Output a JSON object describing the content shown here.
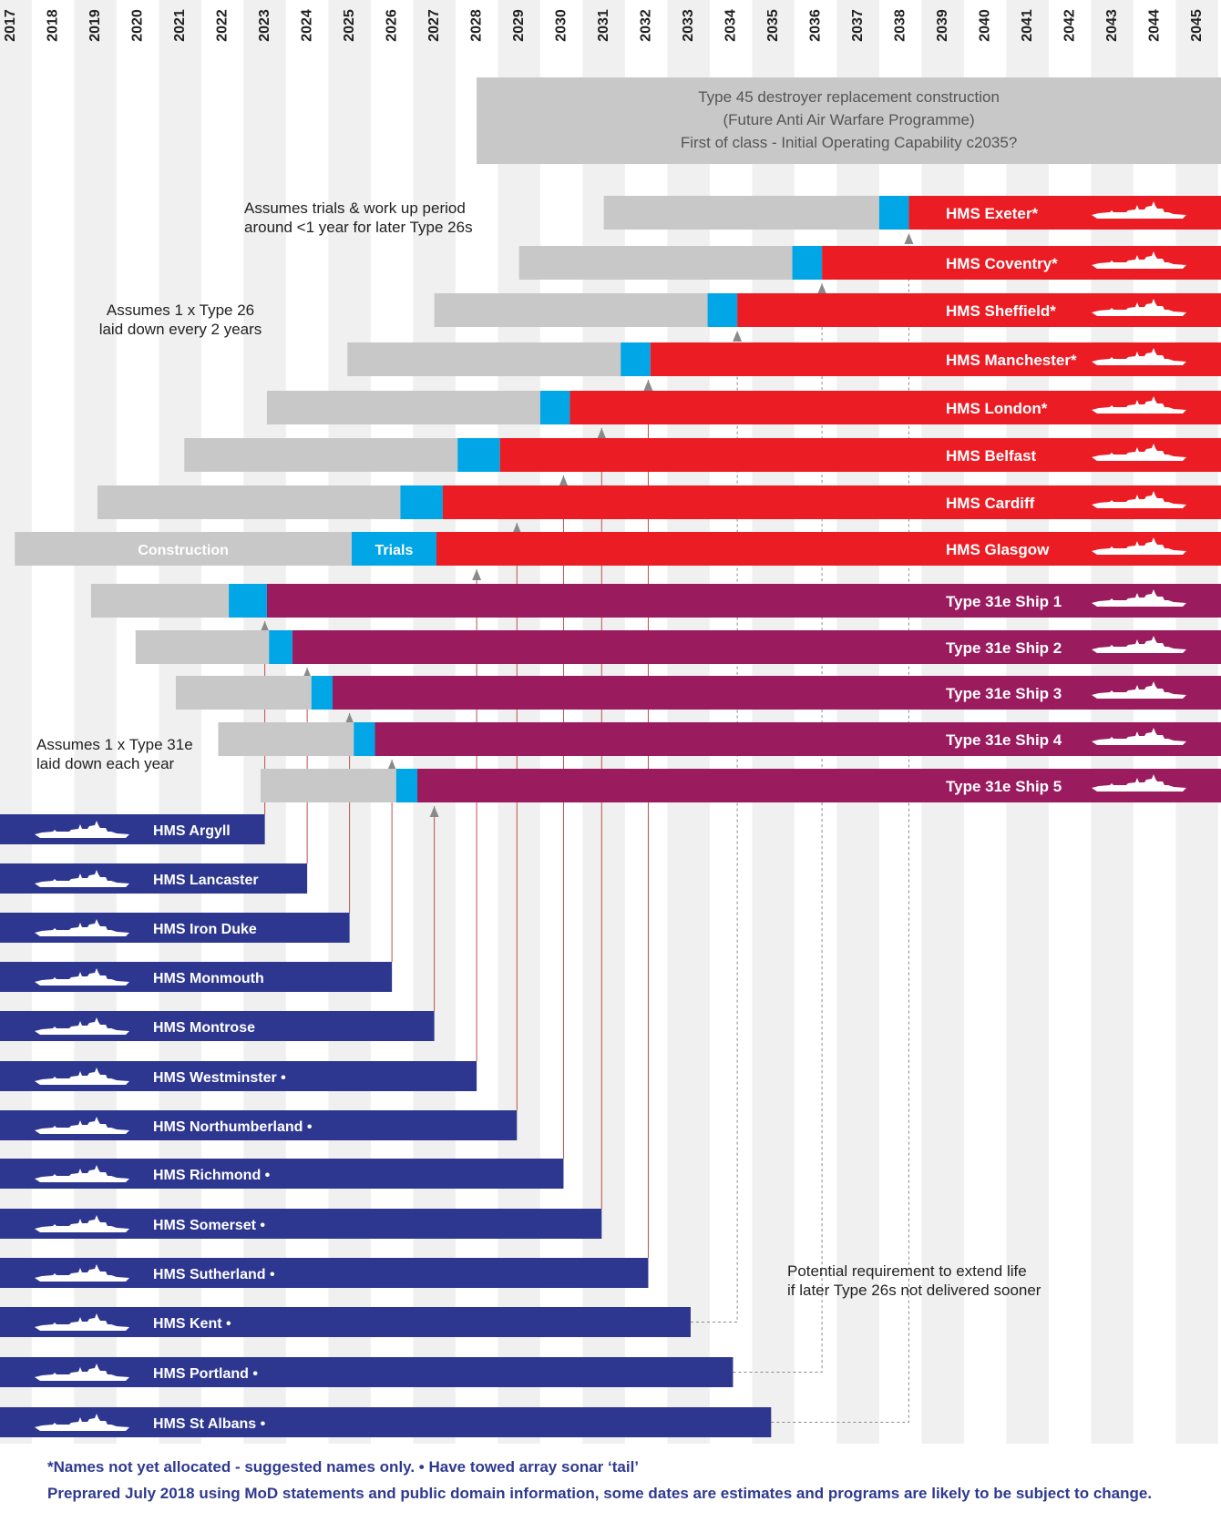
{
  "chart_data": {
    "type": "gantt",
    "years": [
      "2017",
      "2018",
      "2019",
      "2020",
      "2021",
      "2022",
      "2023",
      "2024",
      "2025",
      "2026",
      "2027",
      "2028",
      "2029",
      "2030",
      "2031",
      "2032",
      "2033",
      "2034",
      "2035",
      "2036",
      "2037",
      "2038",
      "2039",
      "2040",
      "2041",
      "2042",
      "2043",
      "2044",
      "2045"
    ],
    "colors": {
      "construction": "#c8c8c8",
      "trials": "#00a6e6",
      "type26": "#ec1c24",
      "type31e": "#9b1b5f",
      "type23": "#2e3790",
      "type45_box": "#c8c8c8",
      "arrow_link": "#c0504d"
    },
    "legend_labels": {
      "construction": "Construction",
      "trials": "Trials"
    },
    "type45_box": {
      "start": 2028.0,
      "end": 2046.0,
      "lines": [
        "Type 45 destroyer replacement construction",
        "(Future Anti Air Warfare Programme)",
        "First of class - Initial Operating Capability c2035?"
      ]
    },
    "type26": [
      {
        "name": "HMS Exeter*",
        "start": 2031.0,
        "trials": 2037.5,
        "service": 2038.2
      },
      {
        "name": "HMS Coventry*",
        "start": 2029.0,
        "trials": 2035.45,
        "service": 2036.15
      },
      {
        "name": "HMS Sheffield*",
        "start": 2027.0,
        "trials": 2033.45,
        "service": 2034.15
      },
      {
        "name": "HMS Manchester*",
        "start": 2024.95,
        "trials": 2031.4,
        "service": 2032.1
      },
      {
        "name": "HMS London*",
        "start": 2023.05,
        "trials": 2029.5,
        "service": 2030.2
      },
      {
        "name": "HMS Belfast",
        "start": 2021.1,
        "trials": 2027.55,
        "service": 2028.55
      },
      {
        "name": "HMS Cardiff",
        "start": 2019.05,
        "trials": 2026.2,
        "service": 2027.2
      },
      {
        "name": "HMS Glasgow",
        "start": 2017.1,
        "trials": 2025.05,
        "service": 2027.05
      }
    ],
    "type31e": [
      {
        "name": "Type 31e   Ship 1",
        "start": 2018.9,
        "trials": 2022.15,
        "service": 2023.05
      },
      {
        "name": "Type 31e   Ship 2",
        "start": 2019.95,
        "trials": 2023.1,
        "service": 2023.65
      },
      {
        "name": "Type 31e   Ship 3",
        "start": 2020.9,
        "trials": 2024.1,
        "service": 2024.6
      },
      {
        "name": "Type 31e   Ship 4",
        "start": 2021.9,
        "trials": 2025.1,
        "service": 2025.6
      },
      {
        "name": "Type 31e   Ship 5",
        "start": 2022.9,
        "trials": 2026.1,
        "service": 2026.6
      }
    ],
    "type23": [
      {
        "name": "HMS Argyll",
        "retire": 2023.0
      },
      {
        "name": "HMS Lancaster",
        "retire": 2024.0
      },
      {
        "name": "HMS Iron Duke",
        "retire": 2025.0
      },
      {
        "name": "HMS Monmouth",
        "retire": 2026.0
      },
      {
        "name": "HMS Montrose",
        "retire": 2027.0
      },
      {
        "name": "HMS Westminster •",
        "retire": 2028.0
      },
      {
        "name": "HMS Northumberland •",
        "retire": 2028.95
      },
      {
        "name": "HMS Richmond •",
        "retire": 2030.05
      },
      {
        "name": "HMS Somerset •",
        "retire": 2030.95
      },
      {
        "name": "HMS Sutherland •",
        "retire": 2032.05
      },
      {
        "name": "HMS Kent •",
        "retire": 2033.05
      },
      {
        "name": "HMS Portland •",
        "retire": 2034.05
      },
      {
        "name": "HMS St Albans •",
        "retire": 2034.95
      }
    ],
    "annotations": [
      {
        "id": "trials",
        "lines": [
          "Assumes trials & work up period",
          "around <1 year for later Type 26s"
        ]
      },
      {
        "id": "t26rate",
        "lines": [
          "Assumes 1 x Type 26",
          "laid down every 2 years"
        ]
      },
      {
        "id": "t31rate",
        "lines": [
          "Assumes 1 x Type 31e",
          "laid down each year"
        ]
      },
      {
        "id": "extend",
        "lines": [
          "Potential requirement to extend life",
          "if later Type 26s not delivered sooner"
        ]
      }
    ]
  },
  "footnotes": {
    "line1": "*Names not yet allocated - suggested names only.          • Have towed array sonar ‘tail’",
    "line2": "Preprared July 2018 using MoD statements and public domain information, some dates are estimates and programs are likely to be subject to change."
  }
}
